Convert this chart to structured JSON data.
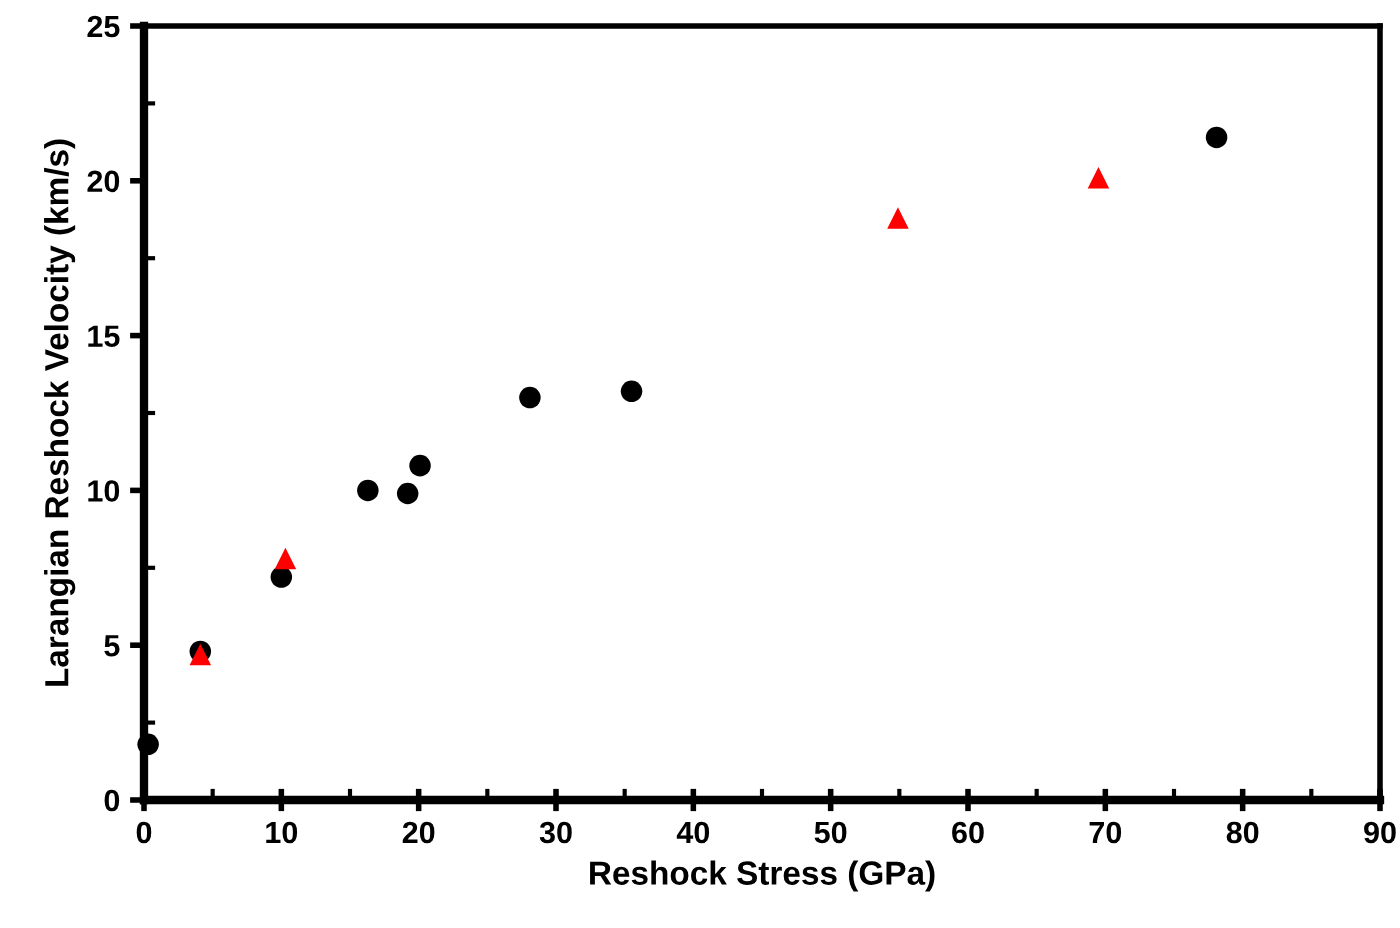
{
  "chart_data": {
    "type": "scatter",
    "xlabel": "Reshock Stress (GPa)",
    "ylabel": "Larangian Reshock Velocity (km/s)",
    "xlim": [
      0,
      90
    ],
    "xticks": [
      0,
      10,
      20,
      30,
      40,
      50,
      60,
      70,
      80,
      90
    ],
    "ylim": [
      0,
      25
    ],
    "yticks": [
      0,
      5,
      10,
      15,
      20,
      25
    ],
    "grid": false,
    "series": [
      {
        "color": "#000000",
        "marker": "circle",
        "x": [
          0.3,
          4.1,
          10.0,
          16.3,
          19.2,
          20.1,
          28.1,
          35.5,
          78.1
        ],
        "values": [
          1.8,
          4.8,
          7.2,
          10.0,
          9.9,
          10.8,
          13.0,
          13.2,
          21.4
        ]
      },
      {
        "color": "#ff0000",
        "marker": "triangle",
        "x": [
          4.1,
          10.3,
          54.9,
          69.5
        ],
        "values": [
          4.7,
          7.8,
          18.8,
          20.1
        ]
      }
    ]
  }
}
